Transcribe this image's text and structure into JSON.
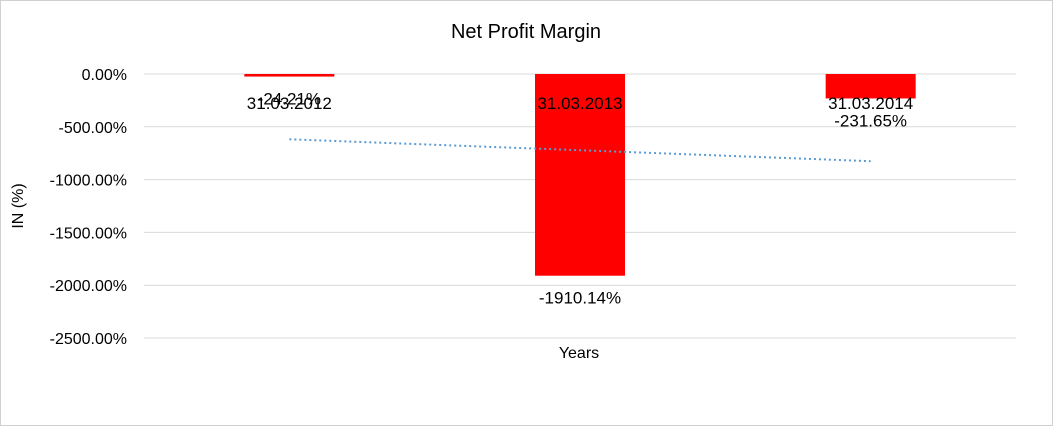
{
  "chart_data": {
    "type": "bar",
    "title": "Net Profit Margin",
    "xlabel": "Years",
    "ylabel": "IN (%)",
    "categories": [
      "31.03.2012",
      "31.03.2013",
      "31.03.2014"
    ],
    "values": [
      -24.21,
      -1910.14,
      -231.65
    ],
    "data_labels": [
      "-24.21%",
      "-1910.14%",
      "-231.65%"
    ],
    "ylim": [
      -2500,
      0
    ],
    "yticks": [
      0,
      -500,
      -1000,
      -1500,
      -2000,
      -2500
    ],
    "ytick_labels": [
      "0.00%",
      "-500.00%",
      "-1000.00%",
      "-1500.00%",
      "-2000.00%",
      "-2500.00%"
    ],
    "grid": true,
    "trendline": "linear, dotted",
    "colors": {
      "bar": "#ff0000",
      "trendline": "#5b9bd5",
      "grid": "#d9d9d9"
    }
  }
}
